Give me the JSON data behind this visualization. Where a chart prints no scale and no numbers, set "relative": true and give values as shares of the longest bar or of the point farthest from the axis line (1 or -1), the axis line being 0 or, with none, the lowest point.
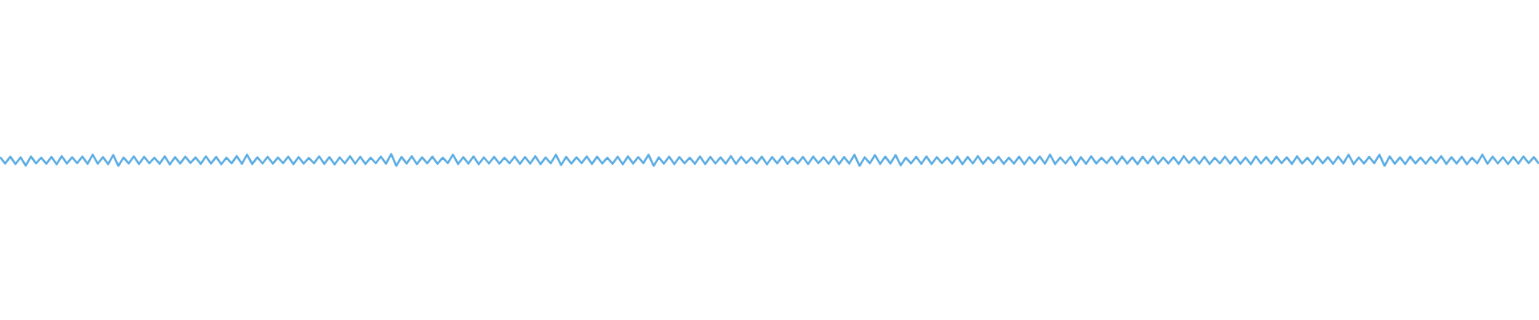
{
  "chart_data": {
    "type": "line",
    "relative": true,
    "color": "#5dade2",
    "line_style": "solid",
    "categories": [
      null,
      null,
      null,
      null,
      null,
      null,
      null,
      null,
      null,
      null,
      null,
      null,
      null,
      null,
      null,
      null,
      null,
      null,
      null,
      null,
      null,
      null,
      null,
      null,
      null,
      null,
      null,
      null,
      null,
      null,
      null,
      null,
      null,
      null,
      null,
      null,
      null,
      null,
      null,
      null,
      null,
      null,
      null,
      null,
      null,
      null,
      null,
      null,
      null,
      null,
      null,
      null,
      null,
      null,
      null,
      null,
      null,
      null,
      null,
      null,
      null,
      null,
      null,
      null,
      null,
      null,
      null,
      null,
      null,
      null,
      null,
      null,
      null,
      null,
      null,
      null,
      null,
      null,
      null,
      null,
      null,
      null,
      null,
      null,
      null,
      null,
      null,
      null,
      null,
      null,
      null,
      null,
      null,
      null,
      null,
      null,
      null,
      null,
      null,
      null,
      null,
      null,
      null,
      null,
      null,
      null,
      null,
      null,
      null,
      null,
      null,
      null,
      null,
      null,
      null,
      null,
      null,
      null,
      null,
      null,
      null,
      null,
      null,
      null,
      null,
      null,
      null,
      null,
      null,
      null,
      null,
      null,
      null,
      null,
      null,
      null,
      null,
      null,
      null,
      null,
      null,
      null,
      null,
      null,
      null,
      null,
      null,
      null,
      null,
      null,
      null,
      null,
      null,
      null,
      null,
      null,
      null,
      null,
      null,
      null,
      null,
      null,
      null,
      null,
      null,
      null,
      null,
      null,
      null,
      null,
      null,
      null,
      null,
      null,
      null,
      null,
      null,
      null,
      null,
      null,
      null,
      null,
      null,
      null,
      null,
      null,
      null,
      null,
      null,
      null,
      null,
      null,
      null,
      null,
      null,
      null,
      null,
      null,
      null,
      null,
      null,
      null,
      null,
      null,
      null,
      null,
      null,
      null,
      null,
      null,
      null,
      null,
      null,
      null,
      null,
      null,
      null,
      null,
      null,
      null,
      null,
      null,
      null,
      null,
      null,
      null,
      null,
      null,
      null,
      null,
      null,
      null,
      null,
      null,
      null,
      null,
      null,
      null,
      null,
      null,
      null,
      null,
      null,
      null,
      null,
      null,
      null,
      null,
      null,
      null,
      null,
      null,
      null,
      null,
      null,
      null,
      null,
      null,
      null,
      null,
      null,
      null,
      null,
      null,
      null,
      null,
      null,
      null,
      null,
      null,
      null,
      null,
      null,
      null,
      null,
      null,
      null,
      null,
      null,
      null,
      null,
      null,
      null,
      null,
      null,
      null,
      null,
      null,
      null,
      null,
      null,
      null,
      null,
      null,
      null,
      null,
      null,
      null,
      null,
      null
    ],
    "values": [
      0.74,
      0.2,
      0.78,
      0.16,
      0.72,
      0.02,
      0.8,
      0.22,
      0.7,
      0.18,
      0.76,
      0.14,
      0.82,
      0.2,
      0.73,
      0.24,
      0.79,
      0.17,
      0.95,
      0.19,
      0.75,
      0.15,
      0.92,
      0.0,
      0.71,
      0.21,
      0.8,
      0.16,
      0.77,
      0.23,
      0.69,
      0.18,
      0.81,
      0.13,
      0.74,
      0.2,
      0.78,
      0.25,
      0.72,
      0.17,
      0.8,
      0.2,
      0.76,
      0.14,
      0.7,
      0.22,
      0.83,
      0.18,
      0.95,
      0.16,
      0.73,
      0.21,
      0.77,
      0.19,
      0.71,
      0.24,
      0.79,
      0.15,
      0.74,
      0.2,
      0.68,
      0.22,
      0.8,
      0.17,
      0.75,
      0.13,
      0.72,
      0.21,
      0.82,
      0.19,
      0.77,
      0.16,
      0.7,
      0.23,
      0.79,
      0.18,
      1.0,
      0.0,
      0.76,
      0.2,
      0.81,
      0.15,
      0.73,
      0.22,
      0.78,
      0.18,
      0.7,
      0.24,
      0.95,
      0.16,
      0.74,
      0.2,
      0.8,
      0.14,
      0.72,
      0.21,
      0.77,
      0.19,
      0.69,
      0.23,
      0.79,
      0.17,
      0.75,
      0.2,
      0.82,
      0.15,
      0.71,
      0.22,
      0.95,
      0.08,
      0.76,
      0.19,
      0.73,
      0.24,
      0.8,
      0.16,
      0.78,
      0.21,
      0.7,
      0.18,
      0.77,
      0.14,
      0.81,
      0.2,
      0.74,
      0.23,
      0.95,
      0.0,
      0.72,
      0.19,
      0.79,
      0.16,
      0.75,
      0.22,
      0.7,
      0.18,
      0.8,
      0.15,
      0.76,
      0.21,
      0.73,
      0.19,
      0.82,
      0.17,
      0.77,
      0.24,
      0.71,
      0.2,
      0.78,
      0.14,
      0.74,
      0.22,
      0.8,
      0.18,
      0.69,
      0.21,
      0.76,
      0.16,
      0.79,
      0.23,
      0.72,
      0.19,
      0.81,
      0.15,
      0.75,
      0.2,
      0.95,
      0.0,
      0.73,
      0.22,
      0.92,
      0.17,
      0.78,
      0.2,
      0.92,
      0.05,
      0.7,
      0.21,
      0.77,
      0.18,
      0.8,
      0.16,
      0.74,
      0.23,
      0.71,
      0.19,
      0.79,
      0.15,
      0.76,
      0.21,
      0.82,
      0.18,
      0.73,
      0.24,
      0.77,
      0.17,
      0.7,
      0.2,
      0.78,
      0.14,
      0.75,
      0.22,
      0.8,
      0.19,
      0.95,
      0.16,
      0.72,
      0.21,
      0.77,
      0.05,
      0.74,
      0.18,
      0.81,
      0.2,
      0.7,
      0.23,
      0.76,
      0.16,
      0.79,
      0.2,
      0.73,
      0.15,
      0.78,
      0.22,
      0.8,
      0.18,
      0.71,
      0.21,
      0.75,
      0.17,
      0.82,
      0.24,
      0.74,
      0.19,
      0.77,
      0.16,
      0.69,
      0.22,
      0.79,
      0.2,
      0.76,
      0.18,
      0.72,
      0.14,
      0.8,
      0.21,
      0.75,
      0.19,
      0.78,
      0.23,
      0.73,
      0.17,
      0.81,
      0.2,
      0.7,
      0.16,
      0.77,
      0.22,
      0.74,
      0.18,
      0.79,
      0.21,
      0.95,
      0.15,
      0.72,
      0.2,
      0.76,
      0.23,
      0.95,
      0.0,
      0.8,
      0.18,
      0.73,
      0.16,
      0.78,
      0.21,
      0.71,
      0.19,
      0.75,
      0.24,
      0.82,
      0.17,
      0.74,
      0.2,
      0.77,
      0.15,
      0.7,
      0.22,
      0.95,
      0.18,
      0.79,
      0.21,
      0.73,
      0.16,
      0.76,
      0.2,
      0.8,
      0.23,
      0.74,
      0.19
    ]
  }
}
